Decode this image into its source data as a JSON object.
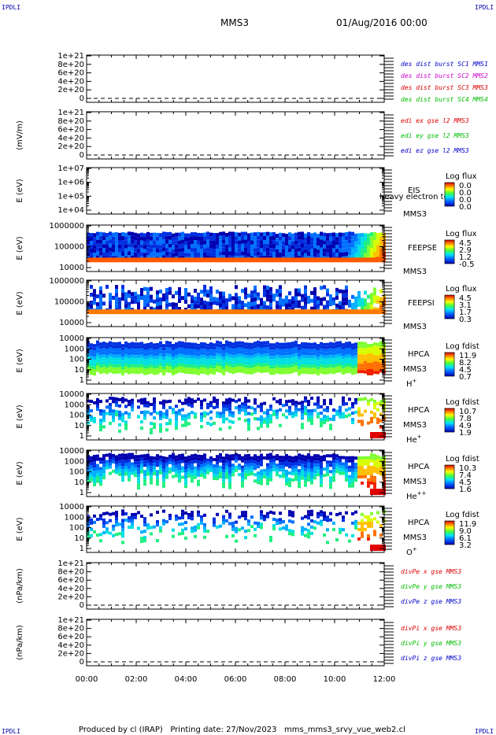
{
  "corner_tl": "IPDLI",
  "corner_tr": "IPDLI",
  "corner_bl": "IPDLI",
  "corner_br": "IPDLI",
  "title": "MMS3",
  "date": "01/Aug/2016 00:00",
  "footer": "Produced by cl (IRAP)   Printing date: 27/Nov/2023   mms_mms3_srvy_vue_web2.cl",
  "x_axis": {
    "ticks": [
      "00:00",
      "02:00",
      "04:00",
      "06:00",
      "08:00",
      "10:00",
      "12:00"
    ]
  },
  "chart_data": [
    {
      "type": "line",
      "ylabel": "",
      "yticks": [
        "1e+21",
        "8e+20",
        "6e+20",
        "4e+20",
        "2e+20",
        "0"
      ],
      "ylim": [
        0,
        1e+21
      ],
      "zero_dashed": true,
      "series": [],
      "legend": [
        {
          "text": "des dist burst SC1 MMS1",
          "color": "#0000cc"
        },
        {
          "text": "des dist burst SC2 MMS2",
          "color": "#cc00cc"
        },
        {
          "text": "des dist burst SC3 MMS3",
          "color": "#dd0000"
        },
        {
          "text": "des dist burst SC4 MMS4",
          "color": "#00bb00"
        }
      ]
    },
    {
      "type": "line",
      "ylabel": "(mV/m)",
      "yticks": [
        "1e+21",
        "8e+20",
        "6e+20",
        "4e+20",
        "2e+20",
        "0"
      ],
      "ylim": [
        0,
        1e+21
      ],
      "zero_dashed": true,
      "series": [],
      "legend": [
        {
          "text": "edi ex gse l2 MMS3",
          "color": "#dd0000"
        },
        {
          "text": "edi ey gse l2 MMS3",
          "color": "#00bb00"
        },
        {
          "text": "edi ez gse l2 MMS3",
          "color": "#0000cc"
        }
      ]
    },
    {
      "type": "heatmap",
      "ylabel": "E (eV)",
      "yticks": [
        "1e+07",
        "1e+06",
        "1e+05",
        "1e+04"
      ],
      "ylim": [
        10000,
        10000000
      ],
      "log_y": true,
      "inst": "EIS",
      "inst2": "MMS3",
      "extra": "heavy electron to",
      "cb_label": "Log flux",
      "cb_ticks": [
        "0.0",
        "0.0",
        "0.0",
        "0.0"
      ],
      "data": "empty"
    },
    {
      "type": "heatmap",
      "ylabel": "E (eV)",
      "yticks": [
        "1000000",
        "100000",
        "10000"
      ],
      "ylim": [
        10000,
        1000000
      ],
      "log_y": true,
      "inst": "FEEPSE",
      "inst2": "MMS3",
      "cb_label": "Log flux",
      "cb_ticks": [
        "4.5",
        "2.9",
        "1.2",
        "-0.5"
      ],
      "data": "spectrogram"
    },
    {
      "type": "heatmap",
      "ylabel": "E (eV)",
      "yticks": [
        "1000000",
        "100000",
        "10000"
      ],
      "ylim": [
        10000,
        1000000
      ],
      "log_y": true,
      "inst": "FEEPSI",
      "inst2": "MMS3",
      "cb_label": "Log flux",
      "cb_ticks": [
        "4.5",
        "3.1",
        "1.7",
        "0.3"
      ],
      "data": "spectrogram"
    },
    {
      "type": "heatmap",
      "ylabel": "E (eV)",
      "yticks": [
        "10000",
        "1000",
        "100",
        "10",
        "1"
      ],
      "ylim": [
        1,
        30000
      ],
      "log_y": true,
      "inst": "HPCA",
      "inst2": "MMS3",
      "species": "H",
      "sup": "+",
      "cb_label": "Log fdist",
      "cb_ticks": [
        "11.9",
        "8.2",
        "4.5",
        "0.7"
      ],
      "data": "spectrogram"
    },
    {
      "type": "heatmap",
      "ylabel": "E (eV)",
      "yticks": [
        "10000",
        "1000",
        "100",
        "10",
        "1"
      ],
      "ylim": [
        1,
        30000
      ],
      "log_y": true,
      "inst": "HPCA",
      "inst2": "MMS3",
      "species": "He",
      "sup": "+",
      "cb_label": "Log fdist",
      "cb_ticks": [
        "10.7",
        "7.8",
        "4.9",
        "1.9"
      ],
      "data": "spectrogram"
    },
    {
      "type": "heatmap",
      "ylabel": "E (eV)",
      "yticks": [
        "10000",
        "1000",
        "100",
        "10",
        "1"
      ],
      "ylim": [
        1,
        30000
      ],
      "log_y": true,
      "inst": "HPCA",
      "inst2": "MMS3",
      "species": "He",
      "sup": "++",
      "cb_label": "Log fdist",
      "cb_ticks": [
        "10.3",
        "7.4",
        "4.5",
        "1.6"
      ],
      "data": "spectrogram"
    },
    {
      "type": "heatmap",
      "ylabel": "E (eV)",
      "yticks": [
        "10000",
        "1000",
        "100",
        "10",
        "1"
      ],
      "ylim": [
        1,
        30000
      ],
      "log_y": true,
      "inst": "HPCA",
      "inst2": "MMS3",
      "species": "O",
      "sup": "+",
      "cb_label": "Log fdist",
      "cb_ticks": [
        "11.9",
        "9.0",
        "6.1",
        "3.2"
      ],
      "data": "spectrogram"
    },
    {
      "type": "line",
      "ylabel": "(nPa/km)",
      "yticks": [
        "1e+21",
        "8e+20",
        "6e+20",
        "4e+20",
        "2e+20",
        "0"
      ],
      "ylim": [
        0,
        1e+21
      ],
      "zero_dashed": true,
      "series": [],
      "legend": [
        {
          "text": "divPe x gse MMS3",
          "color": "#dd0000"
        },
        {
          "text": "divPe y gse MMS3",
          "color": "#00bb00"
        },
        {
          "text": "divPe z gse MMS3",
          "color": "#0000cc"
        }
      ]
    },
    {
      "type": "line",
      "ylabel": "(nPa/km)",
      "yticks": [
        "1e+21",
        "8e+20",
        "6e+20",
        "4e+20",
        "2e+20",
        "0"
      ],
      "ylim": [
        0,
        1e+21
      ],
      "zero_dashed": true,
      "series": [],
      "legend": [
        {
          "text": "divPi x gse MMS3",
          "color": "#dd0000"
        },
        {
          "text": "divPi y gse MMS3",
          "color": "#00bb00"
        },
        {
          "text": "divPi z gse MMS3",
          "color": "#0000cc"
        }
      ]
    }
  ]
}
